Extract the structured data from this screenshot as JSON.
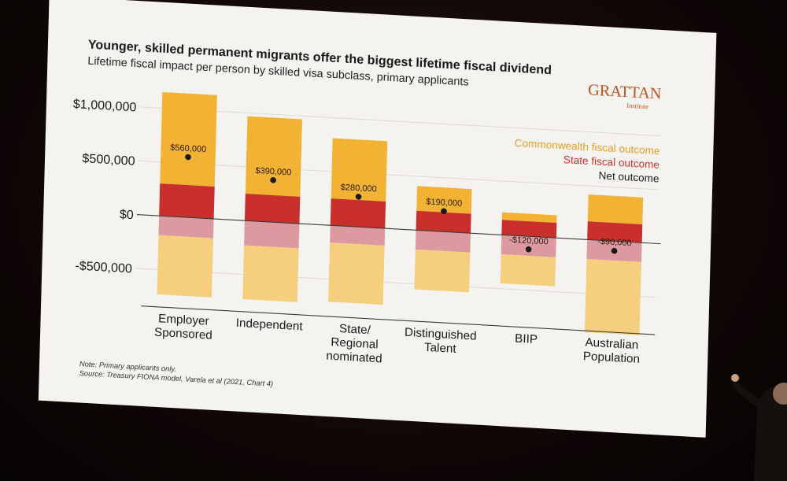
{
  "colors": {
    "commonwealth": "#f2b234",
    "commonwealth_neg": "#f6cf7e",
    "state": "#c9302c",
    "state_neg": "#dc9aa0",
    "net": "#1a1a1a",
    "screen": "#f5f3f0"
  },
  "logo": {
    "name": "GRATTAN",
    "sub": "Institute"
  },
  "legend": {
    "commonwealth": "Commonwealth fiscal outcome",
    "state": "State fiscal outcome",
    "net": "Net outcome"
  },
  "note": "Note: Primary applicants only.",
  "source": "Source: Treasury FIONA model, Varela et al (2021, Chart 4)",
  "chart_data": {
    "type": "bar",
    "title": "Younger, skilled permanent migrants offer the biggest lifetime fiscal dividend",
    "subtitle": "Lifetime fiscal impact per person by skilled visa subclass, primary applicants",
    "ylim": [
      -600000,
      1000000
    ],
    "yticks": [
      {
        "value": 1000000,
        "label": "$1,000,000"
      },
      {
        "value": 500000,
        "label": "$500,000"
      },
      {
        "value": 0,
        "label": "$0"
      },
      {
        "value": -500000,
        "label": "-$500,000"
      }
    ],
    "categories": [
      [
        "Employer",
        "Sponsored"
      ],
      [
        "Independent"
      ],
      [
        "State/",
        "Regional",
        "nominated"
      ],
      [
        "Distinguished",
        "Talent"
      ],
      [
        "BIIP"
      ],
      [
        "Australian",
        "Population"
      ]
    ],
    "series": [
      {
        "name": "Commonwealth fiscal outcome",
        "pos": [
          850000,
          720000,
          560000,
          230000,
          70000,
          250000
        ],
        "neg": [
          -550000,
          -500000,
          -550000,
          -370000,
          -270000,
          -680000
        ]
      },
      {
        "name": "State fiscal outcome",
        "pos": [
          300000,
          250000,
          250000,
          180000,
          140000,
          170000
        ],
        "neg": [
          -180000,
          -230000,
          -160000,
          -180000,
          -180000,
          -180000
        ]
      },
      {
        "name": "Net outcome",
        "values": [
          560000,
          390000,
          280000,
          190000,
          -120000,
          -90000
        ]
      }
    ],
    "value_labels": [
      "$560,000",
      "$390,000",
      "$280,000",
      "$190,000",
      "-$120,000",
      "-$90,000"
    ]
  }
}
